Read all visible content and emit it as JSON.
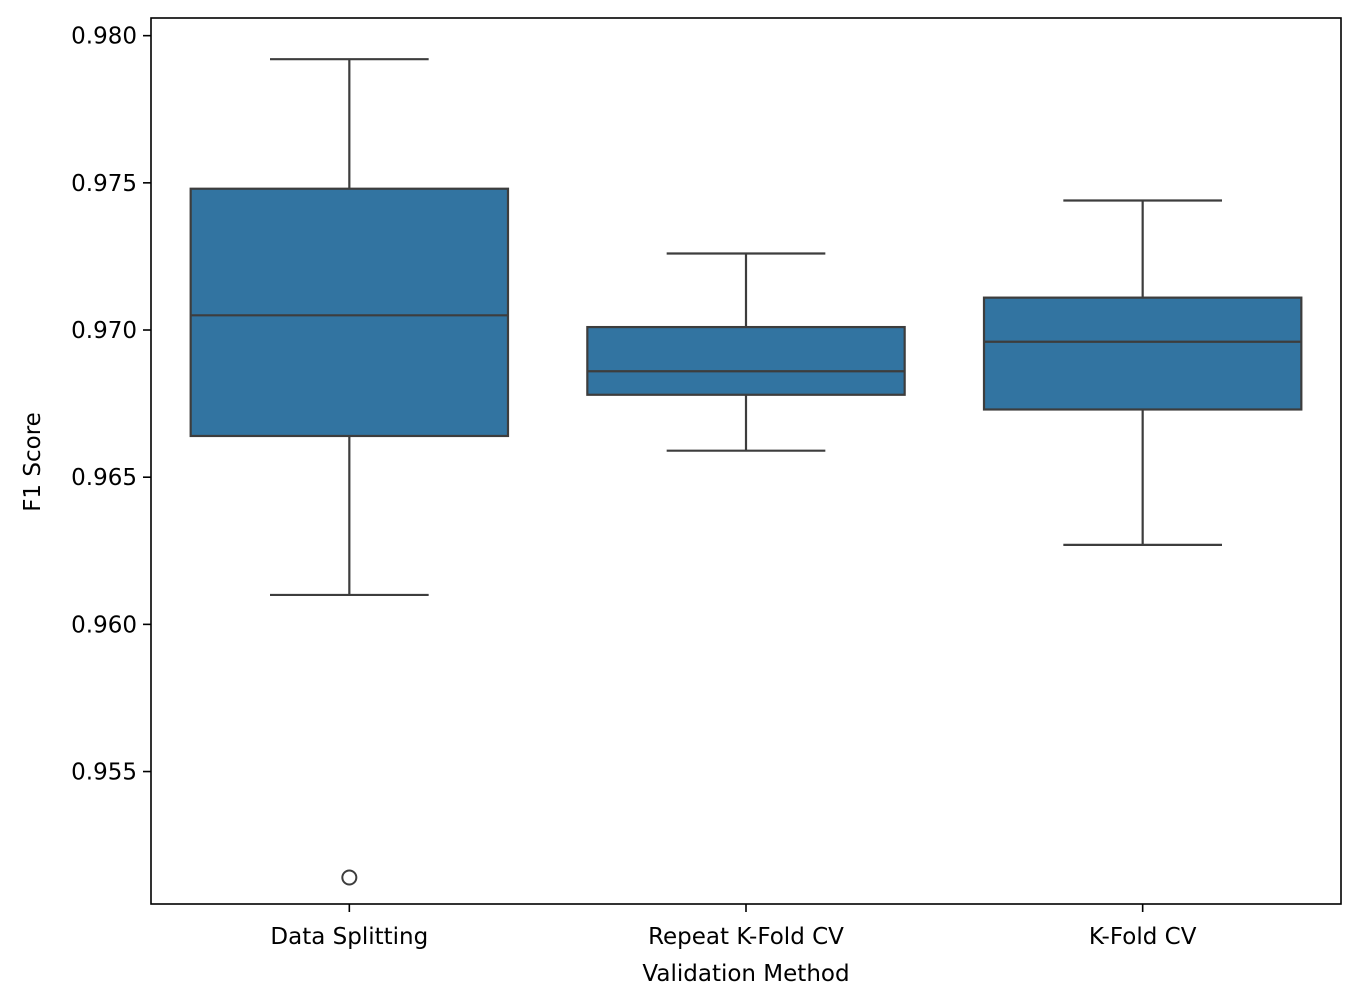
{
  "chart_data": {
    "type": "box",
    "title": "",
    "xlabel": "Validation Method",
    "ylabel": "F1 Score",
    "ylim": [
      0.9505,
      0.9806
    ],
    "yticks": [
      0.955,
      0.96,
      0.965,
      0.97,
      0.975,
      0.98
    ],
    "ytick_labels": [
      "0.955",
      "0.960",
      "0.965",
      "0.970",
      "0.975",
      "0.980"
    ],
    "categories": [
      "Data Splitting",
      "Repeat K-Fold CV",
      "K-Fold CV"
    ],
    "boxes": [
      {
        "category": "Data Splitting",
        "whisker_low": 0.961,
        "q1": 0.9664,
        "median": 0.9705,
        "q3": 0.9748,
        "whisker_high": 0.9792,
        "outliers": [
          0.9514
        ]
      },
      {
        "category": "Repeat K-Fold CV",
        "whisker_low": 0.9659,
        "q1": 0.9678,
        "median": 0.9686,
        "q3": 0.9701,
        "whisker_high": 0.9726,
        "outliers": []
      },
      {
        "category": "K-Fold CV",
        "whisker_low": 0.9627,
        "q1": 0.9673,
        "median": 0.9696,
        "q3": 0.9711,
        "whisker_high": 0.9744,
        "outliers": []
      }
    ],
    "colors": {
      "box_fill": "#3274a1",
      "line": "#3d3d3d",
      "axis": "#000000"
    },
    "grid": false,
    "legend": "none"
  }
}
